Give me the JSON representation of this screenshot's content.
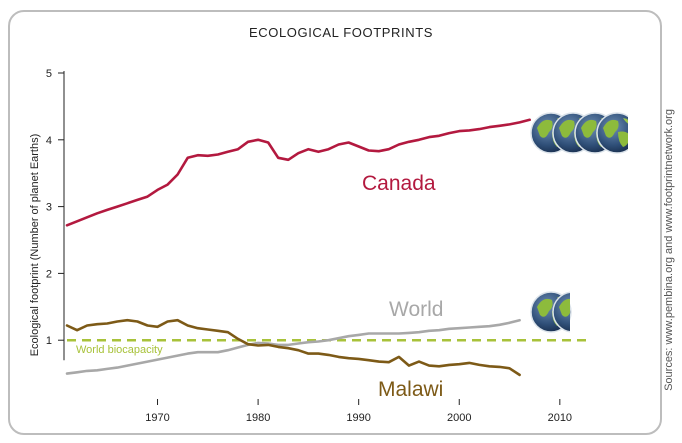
{
  "chart_data": {
    "type": "line",
    "title": "ECOLOGICAL FOOTPRINTS",
    "ylabel": "Ecological footprint (Number of planet Earths)",
    "xlabel": "",
    "xlim": [
      1961,
      2013
    ],
    "ylim": [
      0,
      5
    ],
    "xticks": [
      1970,
      1980,
      1990,
      2000,
      2010
    ],
    "yticks": [
      1,
      2,
      3,
      4,
      5
    ],
    "grid": false,
    "legend": "inline labels",
    "source": "Sources: www.pembina.org and www.footprintnetwork.org",
    "reference_line": {
      "name": "World biocapacity",
      "value": 1.0,
      "color": "#a8c23a"
    },
    "series": [
      {
        "name": "Canada",
        "color": "#b3193f",
        "globes": 4,
        "x": [
          1961,
          1962,
          1963,
          1964,
          1965,
          1966,
          1967,
          1968,
          1969,
          1970,
          1971,
          1972,
          1973,
          1974,
          1975,
          1976,
          1977,
          1978,
          1979,
          1980,
          1981,
          1982,
          1983,
          1984,
          1985,
          1986,
          1987,
          1988,
          1989,
          1990,
          1991,
          1992,
          1993,
          1994,
          1995,
          1996,
          1997,
          1998,
          1999,
          2000,
          2001,
          2002,
          2003,
          2004,
          2005,
          2006,
          2007
        ],
        "y": [
          2.72,
          2.78,
          2.84,
          2.9,
          2.95,
          3.0,
          3.05,
          3.1,
          3.15,
          3.25,
          3.33,
          3.48,
          3.73,
          3.77,
          3.76,
          3.78,
          3.82,
          3.86,
          3.97,
          4.0,
          3.96,
          3.73,
          3.7,
          3.8,
          3.86,
          3.82,
          3.86,
          3.93,
          3.96,
          3.9,
          3.84,
          3.83,
          3.86,
          3.93,
          3.97,
          4.0,
          4.04,
          4.06,
          4.1,
          4.13,
          4.14,
          4.16,
          4.19,
          4.21,
          4.23,
          4.26,
          4.3
        ]
      },
      {
        "name": "World",
        "color": "#a8a8a8",
        "globes": 1.3,
        "x": [
          1961,
          1962,
          1963,
          1964,
          1965,
          1966,
          1967,
          1968,
          1969,
          1970,
          1971,
          1972,
          1973,
          1974,
          1975,
          1976,
          1977,
          1978,
          1979,
          1980,
          1981,
          1982,
          1983,
          1984,
          1985,
          1986,
          1987,
          1988,
          1989,
          1990,
          1991,
          1992,
          1993,
          1994,
          1995,
          1996,
          1997,
          1998,
          1999,
          2000,
          2001,
          2002,
          2003,
          2004,
          2005,
          2006
        ],
        "y": [
          0.5,
          0.52,
          0.54,
          0.55,
          0.57,
          0.59,
          0.62,
          0.65,
          0.68,
          0.71,
          0.74,
          0.77,
          0.8,
          0.82,
          0.82,
          0.82,
          0.85,
          0.89,
          0.93,
          0.96,
          0.95,
          0.93,
          0.93,
          0.95,
          0.97,
          0.98,
          1.0,
          1.03,
          1.06,
          1.08,
          1.1,
          1.1,
          1.1,
          1.1,
          1.11,
          1.12,
          1.14,
          1.15,
          1.17,
          1.18,
          1.19,
          1.2,
          1.21,
          1.23,
          1.26,
          1.3
        ]
      },
      {
        "name": "Malawi",
        "color": "#7d5a17",
        "x": [
          1961,
          1962,
          1963,
          1964,
          1965,
          1966,
          1967,
          1968,
          1969,
          1970,
          1971,
          1972,
          1973,
          1974,
          1975,
          1976,
          1977,
          1978,
          1979,
          1980,
          1981,
          1982,
          1983,
          1984,
          1985,
          1986,
          1987,
          1988,
          1989,
          1990,
          1991,
          1992,
          1993,
          1994,
          1995,
          1996,
          1997,
          1998,
          1999,
          2000,
          2001,
          2002,
          2003,
          2004,
          2005,
          2006
        ],
        "y": [
          1.22,
          1.15,
          1.22,
          1.24,
          1.25,
          1.28,
          1.3,
          1.28,
          1.22,
          1.2,
          1.28,
          1.3,
          1.22,
          1.18,
          1.16,
          1.14,
          1.12,
          1.02,
          0.94,
          0.92,
          0.93,
          0.9,
          0.88,
          0.85,
          0.8,
          0.8,
          0.78,
          0.75,
          0.73,
          0.72,
          0.7,
          0.68,
          0.67,
          0.75,
          0.62,
          0.68,
          0.62,
          0.61,
          0.63,
          0.64,
          0.66,
          0.63,
          0.61,
          0.6,
          0.58,
          0.48
        ]
      }
    ]
  }
}
